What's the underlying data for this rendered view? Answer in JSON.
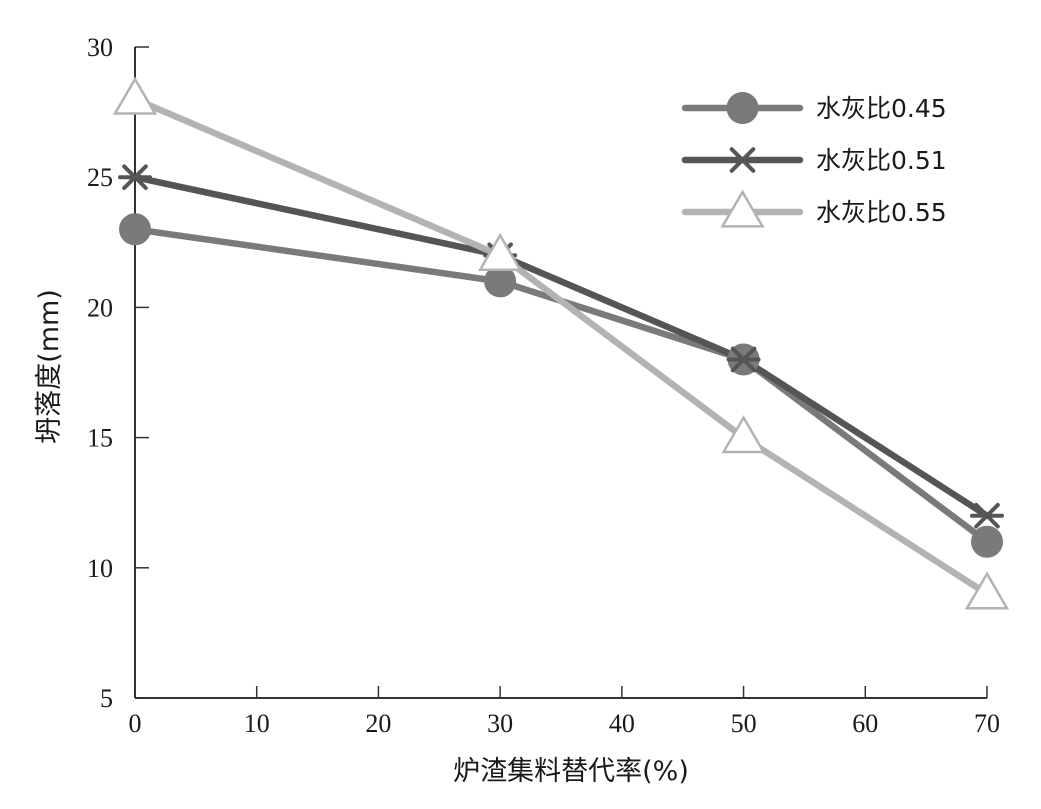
{
  "chart_data": {
    "type": "line",
    "x": [
      0,
      30,
      50,
      70
    ],
    "xlim": [
      0,
      70
    ],
    "ylim": [
      5,
      30
    ],
    "xticks": [
      0,
      10,
      20,
      30,
      40,
      50,
      60,
      70
    ],
    "yticks": [
      5,
      10,
      15,
      20,
      25,
      30
    ],
    "xlabel": "炉渣集料替代率(%)",
    "ylabel": "坍落度(mm)",
    "grid": false,
    "legend_position": "top-right",
    "series": [
      {
        "name": "水灰比0.45",
        "marker": "circle",
        "color": "#7a7a7a",
        "values": [
          23,
          21,
          18,
          11
        ]
      },
      {
        "name": "水灰比0.51",
        "marker": "asterisk",
        "color": "#555555",
        "values": [
          25,
          22,
          18,
          12
        ]
      },
      {
        "name": "水灰比0.55",
        "marker": "triangle-open",
        "color": "#b3b3b3",
        "values": [
          28,
          22,
          15,
          9
        ]
      }
    ]
  }
}
